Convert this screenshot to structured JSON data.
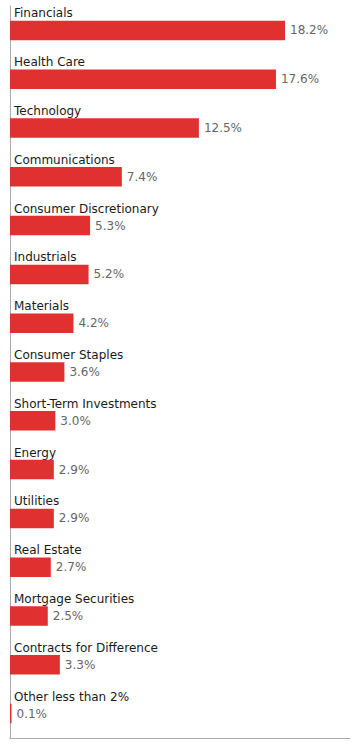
{
  "chart_data": {
    "type": "bar",
    "orientation": "horizontal",
    "categories": [
      "Financials",
      "Health Care",
      "Technology",
      "Communications",
      "Consumer Discretionary",
      "Industrials",
      "Materials",
      "Consumer Staples",
      "Short-Term Investments",
      "Energy",
      "Utilities",
      "Real Estate",
      "Mortgage Securities",
      "Contracts for Difference",
      "Other less than 2%"
    ],
    "values": [
      18.2,
      17.6,
      12.5,
      7.4,
      5.3,
      5.2,
      4.2,
      3.6,
      3.0,
      2.9,
      2.9,
      2.7,
      2.5,
      3.3,
      0.1
    ],
    "value_labels": [
      "18.2%",
      "17.6%",
      "12.5%",
      "7.4%",
      "5.3%",
      "5.2%",
      "4.2%",
      "3.6%",
      "3.0%",
      "2.9%",
      "2.9%",
      "2.7%",
      "2.5%",
      "3.3%",
      "0.1%"
    ],
    "data_labels": true,
    "color": "#e03030",
    "xlim": [
      0,
      22.5
    ],
    "tick_labels": "y",
    "grid": false
  }
}
